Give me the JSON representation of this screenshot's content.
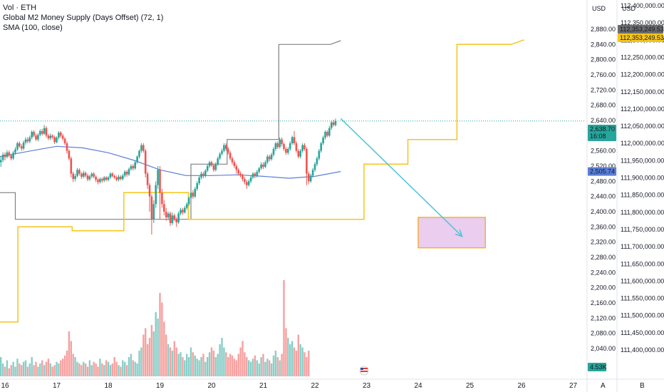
{
  "legend": {
    "line1": "Vol · ETH",
    "line2": "Global M2 Money Supply (Days Offset) (72, 1)",
    "line3": "SMA (100, close)"
  },
  "axes": {
    "left_currency": "USD",
    "right_currency": "USD",
    "left_ticks": [
      "2,880.00",
      "2,840.00",
      "2,800.00",
      "2,760.00",
      "2,720.00",
      "2,680.00",
      "2,640.00",
      "2,600.00",
      "2,560.00",
      "2,520.00",
      "2,480.00",
      "2,440.00",
      "2,400.00",
      "2,360.00",
      "2,320.00",
      "2,280.00",
      "2,240.00",
      "2,200.00",
      "2,160.00",
      "2,120.00",
      "2,080.00",
      "2,040.00"
    ],
    "right_ticks": [
      "112,400,000.00",
      "112,350,000.00",
      "112,300,000.00",
      "112,250,000.00",
      "112,200,000.00",
      "112,150,000.00",
      "112,100,000.00",
      "112,050,000.00",
      "112,000,000.00",
      "111,950,000.00",
      "111,900,000.00",
      "111,850,000.00",
      "111,800,000.00",
      "111,750,000.00",
      "111,700,000.00",
      "111,650,000.00",
      "111,600,000.00",
      "111,550,000.00",
      "111,500,000.00",
      "111,450,000.00",
      "111,400,000.00"
    ],
    "time_ticks": [
      "16",
      "17",
      "18",
      "19",
      "20",
      "21",
      "22",
      "23",
      "24",
      "25",
      "26",
      "27"
    ],
    "corner_a": "A",
    "corner_b": "B"
  },
  "badges": {
    "price": "2,638.70",
    "countdown": "16:08",
    "sma": "2,505.74",
    "volume": "4.53K",
    "m2_top": "112,353,249.53",
    "m2_bottom": "112,353,249.53"
  },
  "colors": {
    "up": "#26a69a",
    "down": "#ef5350",
    "sma": "#5b7fd6",
    "m2_gray": "#808080",
    "m2_yellow": "#f5c518",
    "arrow": "#4fc3d9",
    "box_fill": "#e8c8ee",
    "box_stroke": "#f5a623"
  },
  "chart_data": {
    "type": "candlestick",
    "price_range": [
      2040,
      2880
    ],
    "m2_range": [
      111400000,
      112400000
    ],
    "x_range_days": [
      16,
      27
    ],
    "last_price": 2638.7,
    "sma_last": 2505.74,
    "m2_last": 112353249.53,
    "volume_last": "4.53K",
    "candles": [
      [
        15.92,
        2530,
        2536,
        2518,
        2546
      ],
      [
        15.96,
        2536,
        2550,
        2530,
        2556
      ],
      [
        16.0,
        2550,
        2544,
        2535,
        2556
      ],
      [
        16.04,
        2544,
        2556,
        2540,
        2562
      ],
      [
        16.08,
        2556,
        2548,
        2543,
        2561
      ],
      [
        16.12,
        2548,
        2540,
        2535,
        2552
      ],
      [
        16.16,
        2540,
        2555,
        2536,
        2560
      ],
      [
        16.2,
        2555,
        2564,
        2550,
        2570
      ],
      [
        16.24,
        2564,
        2580,
        2560,
        2584
      ],
      [
        16.28,
        2580,
        2572,
        2568,
        2585
      ],
      [
        16.32,
        2572,
        2566,
        2560,
        2578
      ],
      [
        16.36,
        2566,
        2582,
        2562,
        2587
      ],
      [
        16.4,
        2582,
        2590,
        2576,
        2596
      ],
      [
        16.44,
        2590,
        2585,
        2580,
        2596
      ],
      [
        16.48,
        2585,
        2595,
        2580,
        2600
      ],
      [
        16.52,
        2595,
        2610,
        2590,
        2614
      ],
      [
        16.56,
        2610,
        2600,
        2596,
        2614
      ],
      [
        16.6,
        2600,
        2590,
        2586,
        2605
      ],
      [
        16.64,
        2590,
        2602,
        2585,
        2606
      ],
      [
        16.68,
        2602,
        2612,
        2598,
        2617
      ],
      [
        16.72,
        2612,
        2605,
        2600,
        2618
      ],
      [
        16.76,
        2605,
        2620,
        2602,
        2628
      ],
      [
        16.8,
        2620,
        2600,
        2595,
        2625
      ],
      [
        16.84,
        2600,
        2593,
        2588,
        2605
      ],
      [
        16.88,
        2593,
        2600,
        2588,
        2606
      ],
      [
        16.92,
        2600,
        2596,
        2590,
        2604
      ],
      [
        16.96,
        2596,
        2583,
        2578,
        2600
      ],
      [
        17.0,
        2583,
        2595,
        2580,
        2598
      ],
      [
        17.04,
        2595,
        2608,
        2590,
        2612
      ],
      [
        17.08,
        2608,
        2600,
        2594,
        2612
      ],
      [
        17.12,
        2600,
        2592,
        2587,
        2605
      ],
      [
        17.16,
        2592,
        2580,
        2575,
        2596
      ],
      [
        17.2,
        2580,
        2560,
        2553,
        2585
      ],
      [
        17.24,
        2560,
        2540,
        2535,
        2564
      ],
      [
        17.28,
        2540,
        2500,
        2490,
        2545
      ],
      [
        17.32,
        2500,
        2486,
        2478,
        2505
      ],
      [
        17.36,
        2486,
        2494,
        2480,
        2500
      ],
      [
        17.4,
        2494,
        2510,
        2490,
        2515
      ],
      [
        17.44,
        2510,
        2500,
        2495,
        2514
      ],
      [
        17.48,
        2500,
        2492,
        2486,
        2504
      ],
      [
        17.52,
        2492,
        2502,
        2488,
        2508
      ],
      [
        17.56,
        2502,
        2495,
        2490,
        2506
      ],
      [
        17.6,
        2495,
        2485,
        2480,
        2500
      ],
      [
        17.64,
        2485,
        2493,
        2481,
        2497
      ],
      [
        17.68,
        2493,
        2500,
        2488,
        2504
      ],
      [
        17.72,
        2500,
        2492,
        2488,
        2504
      ],
      [
        17.76,
        2492,
        2484,
        2478,
        2496
      ],
      [
        17.8,
        2484,
        2478,
        2472,
        2488
      ],
      [
        17.84,
        2478,
        2486,
        2474,
        2490
      ],
      [
        17.88,
        2486,
        2482,
        2476,
        2490
      ],
      [
        17.92,
        2482,
        2490,
        2478,
        2494
      ],
      [
        17.96,
        2490,
        2484,
        2480,
        2494
      ],
      [
        18.0,
        2484,
        2490,
        2480,
        2494
      ],
      [
        18.04,
        2490,
        2500,
        2486,
        2504
      ],
      [
        18.08,
        2500,
        2494,
        2490,
        2504
      ],
      [
        18.12,
        2494,
        2490,
        2486,
        2498
      ],
      [
        18.16,
        2490,
        2484,
        2480,
        2495
      ],
      [
        18.2,
        2484,
        2492,
        2480,
        2497
      ],
      [
        18.24,
        2492,
        2486,
        2482,
        2496
      ],
      [
        18.28,
        2486,
        2495,
        2482,
        2500
      ],
      [
        18.32,
        2495,
        2505,
        2490,
        2509
      ],
      [
        18.36,
        2505,
        2498,
        2492,
        2509
      ],
      [
        18.4,
        2498,
        2512,
        2494,
        2516
      ],
      [
        18.44,
        2512,
        2520,
        2508,
        2525
      ],
      [
        18.48,
        2520,
        2514,
        2508,
        2525
      ],
      [
        18.52,
        2514,
        2530,
        2510,
        2535
      ],
      [
        18.56,
        2530,
        2545,
        2526,
        2548
      ],
      [
        18.6,
        2545,
        2560,
        2540,
        2564
      ],
      [
        18.64,
        2560,
        2575,
        2555,
        2580
      ],
      [
        18.68,
        2575,
        2560,
        2555,
        2580
      ],
      [
        18.72,
        2560,
        2500,
        2490,
        2565
      ],
      [
        18.76,
        2500,
        2470,
        2460,
        2505
      ],
      [
        18.8,
        2470,
        2440,
        2400,
        2475
      ],
      [
        18.84,
        2440,
        2380,
        2340,
        2445
      ],
      [
        18.88,
        2380,
        2420,
        2370,
        2430
      ],
      [
        18.92,
        2420,
        2470,
        2410,
        2480
      ],
      [
        18.96,
        2470,
        2510,
        2460,
        2520
      ],
      [
        19.0,
        2510,
        2450,
        2380,
        2520
      ],
      [
        19.04,
        2450,
        2420,
        2410,
        2460
      ],
      [
        19.08,
        2420,
        2400,
        2390,
        2430
      ],
      [
        19.12,
        2400,
        2385,
        2376,
        2410
      ],
      [
        19.16,
        2385,
        2395,
        2378,
        2400
      ],
      [
        19.2,
        2395,
        2370,
        2362,
        2400
      ],
      [
        19.24,
        2370,
        2390,
        2365,
        2398
      ],
      [
        19.28,
        2390,
        2380,
        2375,
        2395
      ],
      [
        19.32,
        2380,
        2372,
        2360,
        2385
      ],
      [
        19.36,
        2372,
        2395,
        2368,
        2400
      ],
      [
        19.4,
        2395,
        2405,
        2390,
        2410
      ],
      [
        19.44,
        2405,
        2398,
        2392,
        2410
      ],
      [
        19.48,
        2398,
        2410,
        2395,
        2415
      ],
      [
        19.52,
        2410,
        2420,
        2405,
        2425
      ],
      [
        19.56,
        2420,
        2436,
        2415,
        2440
      ],
      [
        19.6,
        2436,
        2450,
        2430,
        2455
      ],
      [
        19.64,
        2450,
        2440,
        2434,
        2456
      ],
      [
        19.68,
        2440,
        2460,
        2436,
        2465
      ],
      [
        19.72,
        2460,
        2475,
        2455,
        2480
      ],
      [
        19.76,
        2475,
        2490,
        2470,
        2495
      ],
      [
        19.8,
        2490,
        2500,
        2485,
        2505
      ],
      [
        19.84,
        2500,
        2494,
        2488,
        2505
      ],
      [
        19.88,
        2494,
        2508,
        2490,
        2512
      ],
      [
        19.92,
        2508,
        2520,
        2504,
        2525
      ],
      [
        19.96,
        2520,
        2530,
        2515,
        2534
      ],
      [
        20.0,
        2530,
        2522,
        2518,
        2534
      ],
      [
        20.04,
        2522,
        2510,
        2505,
        2526
      ],
      [
        20.08,
        2510,
        2525,
        2506,
        2530
      ],
      [
        20.12,
        2525,
        2540,
        2520,
        2545
      ],
      [
        20.16,
        2540,
        2552,
        2536,
        2556
      ],
      [
        20.2,
        2552,
        2560,
        2548,
        2566
      ],
      [
        20.24,
        2560,
        2575,
        2556,
        2580
      ],
      [
        20.28,
        2575,
        2565,
        2560,
        2580
      ],
      [
        20.32,
        2565,
        2555,
        2550,
        2570
      ],
      [
        20.36,
        2555,
        2540,
        2535,
        2560
      ],
      [
        20.4,
        2540,
        2530,
        2524,
        2545
      ],
      [
        20.44,
        2530,
        2520,
        2515,
        2535
      ],
      [
        20.48,
        2520,
        2510,
        2500,
        2525
      ],
      [
        20.52,
        2510,
        2500,
        2495,
        2515
      ],
      [
        20.56,
        2500,
        2495,
        2490,
        2506
      ],
      [
        20.6,
        2495,
        2486,
        2480,
        2500
      ],
      [
        20.64,
        2486,
        2478,
        2472,
        2492
      ],
      [
        20.68,
        2478,
        2470,
        2460,
        2484
      ],
      [
        20.72,
        2470,
        2480,
        2466,
        2485
      ],
      [
        20.76,
        2480,
        2490,
        2475,
        2495
      ],
      [
        20.8,
        2490,
        2500,
        2486,
        2504
      ],
      [
        20.84,
        2500,
        2494,
        2488,
        2504
      ],
      [
        20.88,
        2494,
        2505,
        2490,
        2510
      ],
      [
        20.92,
        2505,
        2514,
        2500,
        2518
      ],
      [
        20.96,
        2514,
        2524,
        2510,
        2530
      ],
      [
        21.0,
        2524,
        2518,
        2512,
        2530
      ],
      [
        21.04,
        2518,
        2530,
        2514,
        2535
      ],
      [
        21.08,
        2530,
        2545,
        2525,
        2550
      ],
      [
        21.12,
        2545,
        2538,
        2532,
        2550
      ],
      [
        21.16,
        2538,
        2550,
        2534,
        2555
      ],
      [
        21.2,
        2550,
        2565,
        2545,
        2570
      ],
      [
        21.24,
        2565,
        2580,
        2560,
        2584
      ],
      [
        21.28,
        2580,
        2570,
        2565,
        2585
      ],
      [
        21.32,
        2570,
        2590,
        2566,
        2595
      ],
      [
        21.36,
        2590,
        2578,
        2572,
        2595
      ],
      [
        21.4,
        2578,
        2565,
        2560,
        2582
      ],
      [
        21.44,
        2565,
        2555,
        2550,
        2570
      ],
      [
        21.48,
        2555,
        2565,
        2550,
        2570
      ],
      [
        21.52,
        2565,
        2580,
        2560,
        2585
      ],
      [
        21.56,
        2580,
        2596,
        2576,
        2600
      ],
      [
        21.6,
        2596,
        2580,
        2575,
        2612
      ],
      [
        21.64,
        2580,
        2560,
        2555,
        2586
      ],
      [
        21.68,
        2560,
        2545,
        2540,
        2565
      ],
      [
        21.72,
        2545,
        2560,
        2540,
        2565
      ],
      [
        21.76,
        2560,
        2575,
        2555,
        2580
      ],
      [
        21.8,
        2575,
        2565,
        2560,
        2580
      ],
      [
        21.84,
        2565,
        2500,
        2470,
        2570
      ],
      [
        21.88,
        2500,
        2480,
        2472,
        2506
      ],
      [
        21.92,
        2480,
        2495,
        2476,
        2500
      ],
      [
        21.96,
        2495,
        2510,
        2490,
        2515
      ],
      [
        22.0,
        2510,
        2525,
        2505,
        2530
      ],
      [
        22.04,
        2525,
        2540,
        2520,
        2545
      ],
      [
        22.08,
        2540,
        2560,
        2535,
        2565
      ],
      [
        22.12,
        2560,
        2580,
        2555,
        2584
      ],
      [
        22.16,
        2580,
        2595,
        2575,
        2600
      ],
      [
        22.2,
        2595,
        2610,
        2590,
        2614
      ],
      [
        22.24,
        2610,
        2600,
        2596,
        2614
      ],
      [
        22.28,
        2600,
        2620,
        2596,
        2626
      ],
      [
        22.32,
        2620,
        2635,
        2615,
        2640
      ],
      [
        22.36,
        2635,
        2628,
        2624,
        2642
      ],
      [
        22.4,
        2628,
        2638.7,
        2624,
        2645
      ]
    ],
    "volume": [
      12,
      8,
      6,
      10,
      5,
      7,
      9,
      6,
      11,
      8,
      7,
      9,
      10,
      6,
      8,
      12,
      7,
      9,
      6,
      8,
      10,
      7,
      9,
      11,
      8,
      6,
      7,
      9,
      8,
      10,
      11,
      13,
      16,
      28,
      22,
      14,
      12,
      9,
      8,
      7,
      9,
      8,
      6,
      10,
      7,
      9,
      8,
      6,
      11,
      8,
      7,
      10,
      9,
      7,
      8,
      12,
      9,
      7,
      6,
      10,
      9,
      7,
      12,
      14,
      10,
      9,
      8,
      16,
      18,
      26,
      30,
      20,
      24,
      32,
      28,
      40,
      36,
      52,
      46,
      34,
      26,
      20,
      18,
      16,
      22,
      18,
      14,
      15,
      12,
      10,
      14,
      12,
      18,
      15,
      13,
      11,
      10,
      12,
      14,
      9,
      12,
      15,
      18,
      16,
      12,
      14,
      20,
      24,
      18,
      15,
      12,
      14,
      13,
      11,
      10,
      14,
      18,
      22,
      15,
      12,
      10,
      9,
      11,
      13,
      10,
      8,
      12,
      14,
      9,
      11,
      10,
      8,
      13,
      16,
      12,
      10,
      14,
      60,
      30,
      24,
      20,
      22,
      18,
      16,
      26,
      20,
      18,
      15,
      12,
      16
    ],
    "sma_points": [
      [
        15.9,
        2545
      ],
      [
        16.5,
        2560
      ],
      [
        17.0,
        2572
      ],
      [
        17.5,
        2568
      ],
      [
        18.0,
        2555
      ],
      [
        18.5,
        2535
      ],
      [
        19.0,
        2510
      ],
      [
        19.5,
        2495
      ],
      [
        20.0,
        2495
      ],
      [
        20.5,
        2497
      ],
      [
        21.0,
        2493
      ],
      [
        21.5,
        2488
      ],
      [
        22.0,
        2493
      ],
      [
        22.5,
        2505.74
      ]
    ],
    "m2_gray": [
      [
        15.9,
        2450
      ],
      [
        16.2,
        2450
      ],
      [
        16.2,
        2380
      ],
      [
        19.6,
        2380
      ],
      [
        19.6,
        2525
      ],
      [
        20.3,
        2525
      ],
      [
        20.3,
        2590
      ],
      [
        21.3,
        2590
      ],
      [
        21.3,
        2840
      ],
      [
        22.3,
        2840
      ],
      [
        22.5,
        2850
      ]
    ],
    "m2_yellow": [
      [
        15.9,
        2110
      ],
      [
        16.25,
        2110
      ],
      [
        16.25,
        2360
      ],
      [
        17.3,
        2360
      ],
      [
        17.3,
        2350
      ],
      [
        18.3,
        2350
      ],
      [
        18.3,
        2450
      ],
      [
        19.55,
        2450
      ],
      [
        19.55,
        2380
      ],
      [
        22.95,
        2380
      ],
      [
        22.95,
        2525
      ],
      [
        23.8,
        2525
      ],
      [
        23.8,
        2590
      ],
      [
        24.75,
        2590
      ],
      [
        24.75,
        2840
      ],
      [
        25.8,
        2840
      ],
      [
        26.05,
        2852
      ]
    ],
    "projection_arrow": {
      "from": [
        22.5,
        2645
      ],
      "to": [
        24.85,
        2335
      ]
    },
    "target_zone": {
      "x": [
        24.0,
        25.3
      ],
      "y": [
        2305,
        2385
      ]
    }
  }
}
